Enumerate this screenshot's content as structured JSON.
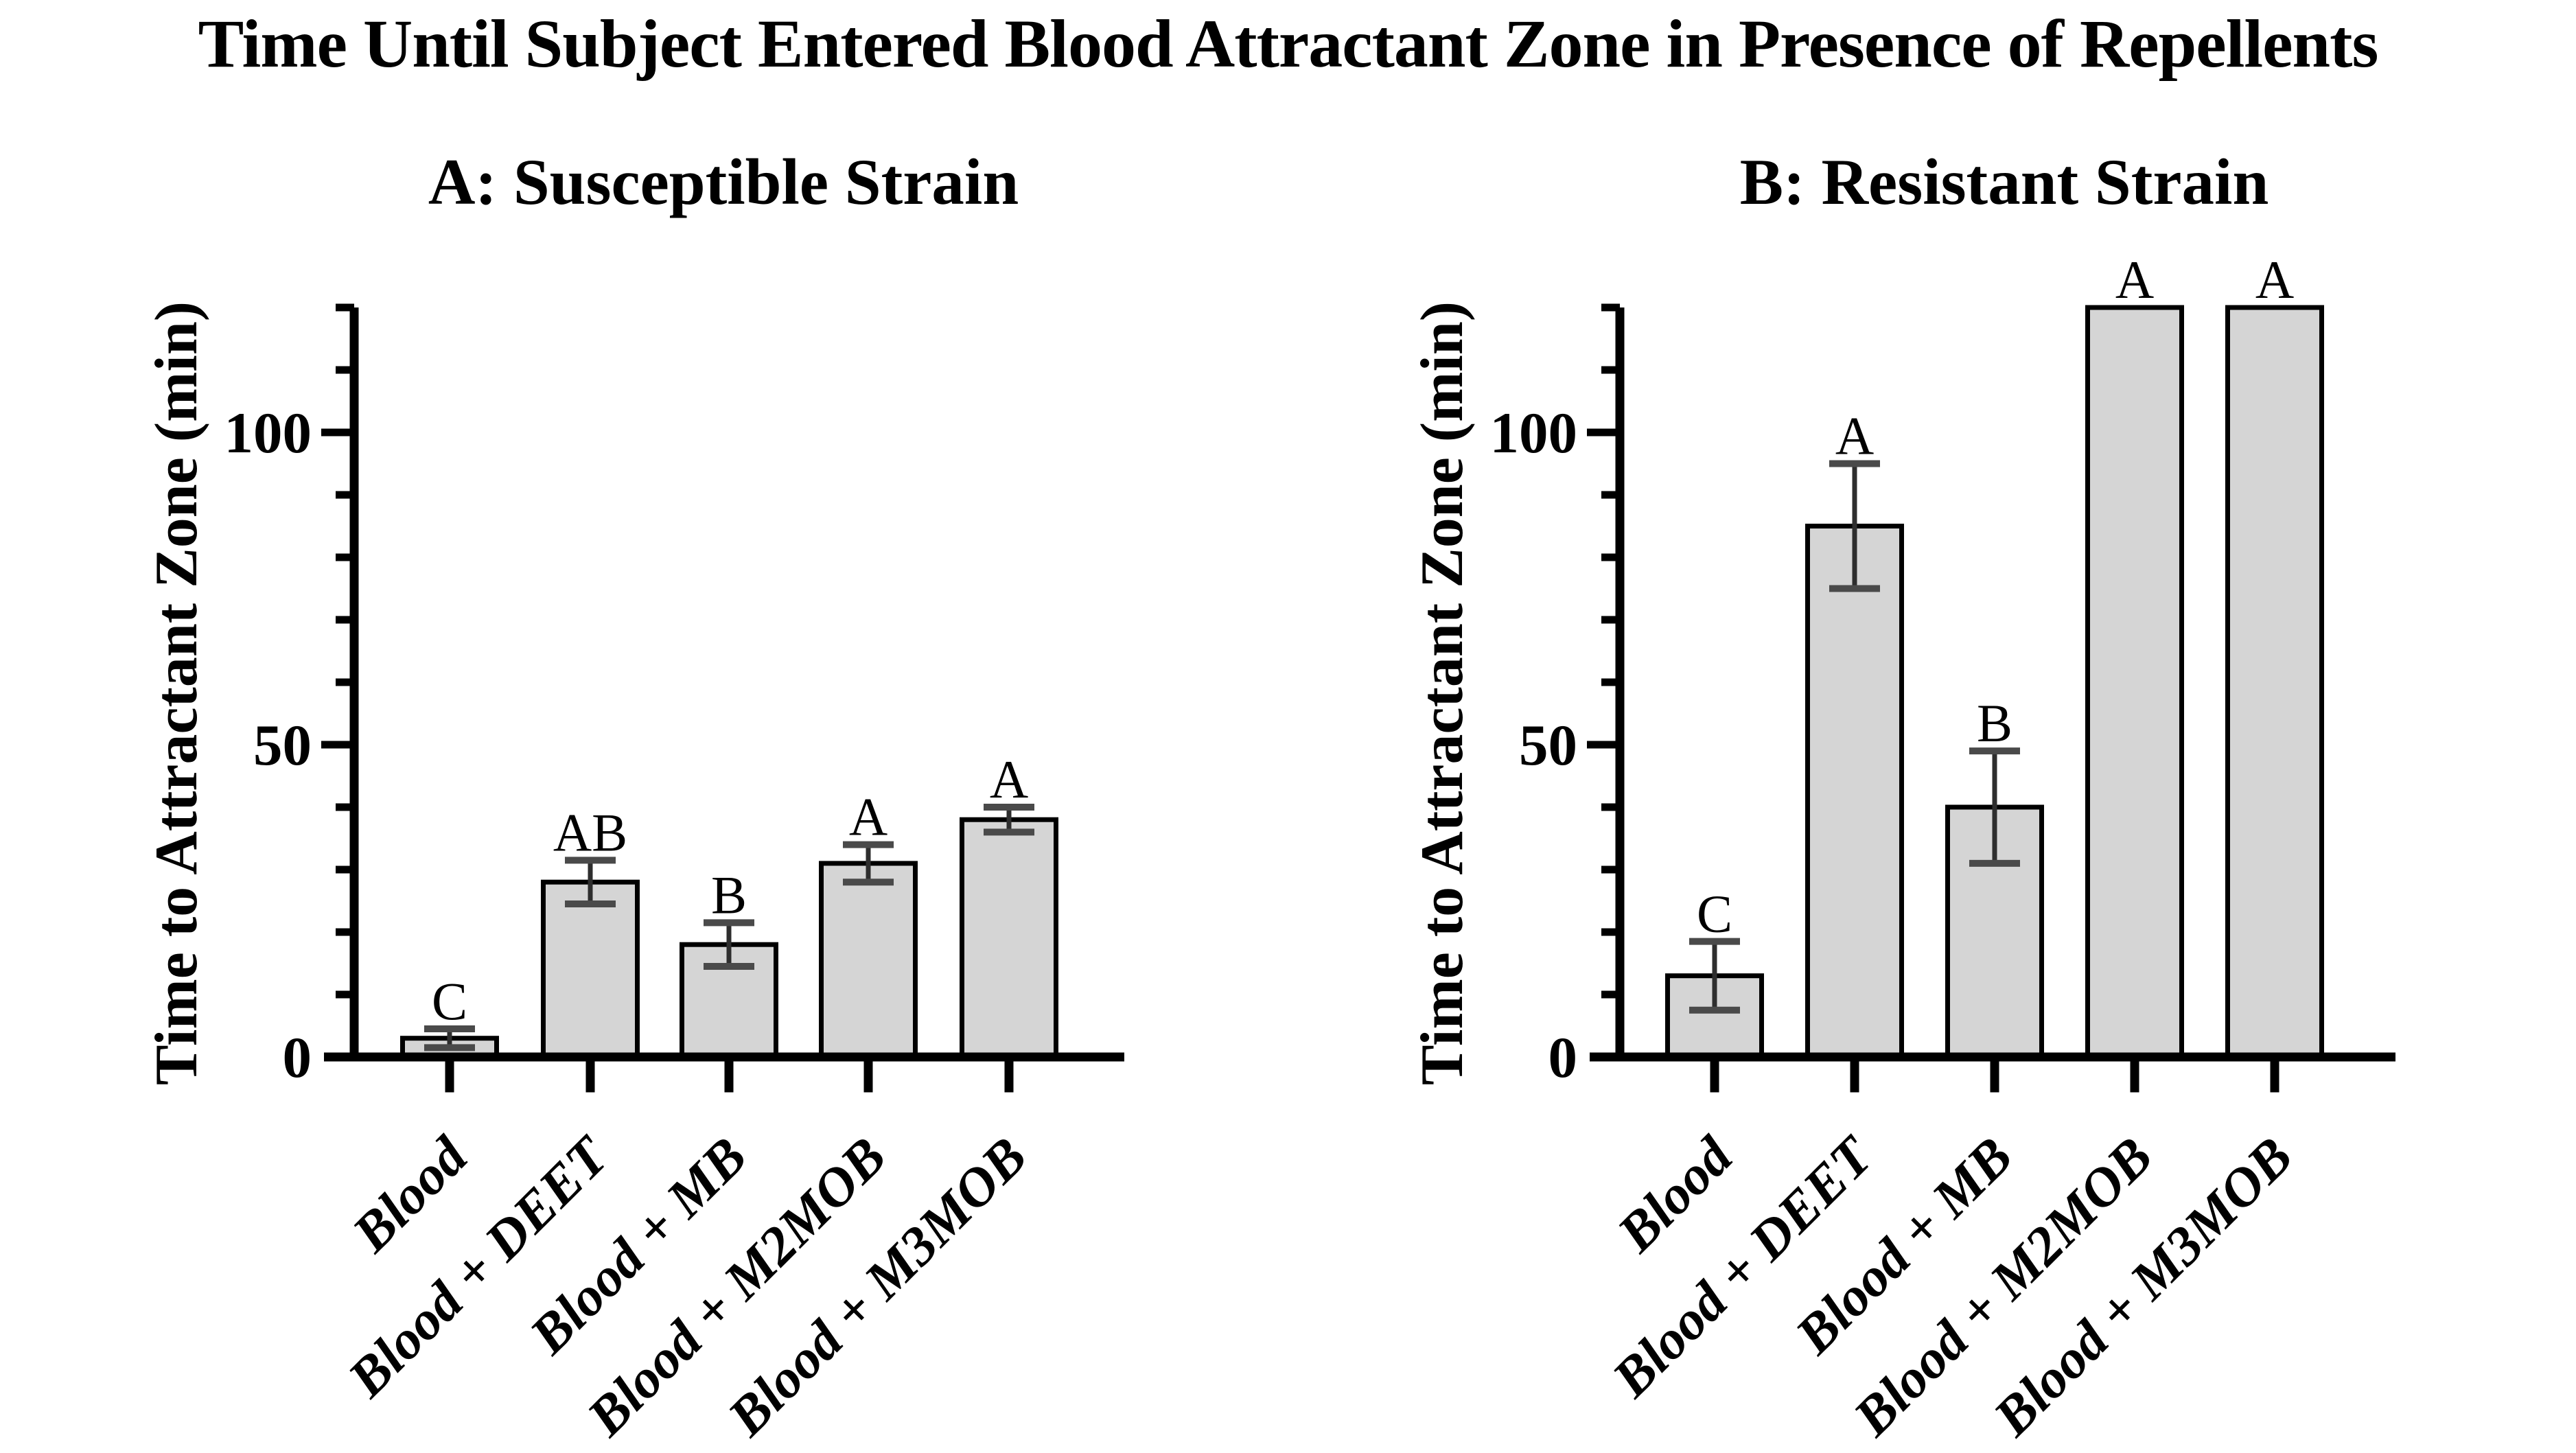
{
  "title": "Time Until Subject Entered Blood Attractant Zone in Presence of Repellents",
  "chart_data": [
    {
      "type": "bar",
      "title": "A: Susceptible Strain",
      "ylabel": "Time to Attractant Zone (min)",
      "xlabel": "",
      "categories": [
        "Blood",
        "Blood + DEET",
        "Blood + MB",
        "Blood + M2MOB",
        "Blood + M3MOB"
      ],
      "values": [
        3,
        28,
        18,
        31,
        38
      ],
      "errors": [
        1.5,
        3.5,
        3.5,
        3,
        2
      ],
      "sig_letters": [
        "C",
        "AB",
        "B",
        "A",
        "A"
      ],
      "ylim": [
        0,
        120
      ],
      "yticks": [
        0,
        50,
        100
      ],
      "minor_tick_step": 10,
      "grid": false,
      "legend_position": "none",
      "bar_fill": "#d5d5d5",
      "bar_stroke": "#000000",
      "error_line_color": "#2e2e2e",
      "error_cap_color": "#4a4a4a",
      "axis_color": "#000000"
    },
    {
      "type": "bar",
      "title": "B: Resistant Strain",
      "ylabel": "Time to Attractant Zone (min)",
      "xlabel": "",
      "categories": [
        "Blood",
        "Blood + DEET",
        "Blood + MB",
        "Blood + M2MOB",
        "Blood + M3MOB"
      ],
      "values": [
        13,
        85,
        40,
        120,
        120
      ],
      "errors": [
        5.5,
        10,
        9,
        0,
        0
      ],
      "sig_letters": [
        "C",
        "A",
        "B",
        "A",
        "A"
      ],
      "ylim": [
        0,
        120
      ],
      "yticks": [
        0,
        50,
        100
      ],
      "minor_tick_step": 10,
      "grid": false,
      "legend_position": "none",
      "bar_fill": "#d5d5d5",
      "bar_stroke": "#000000",
      "error_line_color": "#2e2e2e",
      "error_cap_color": "#4a4a4a",
      "axis_color": "#000000"
    }
  ]
}
